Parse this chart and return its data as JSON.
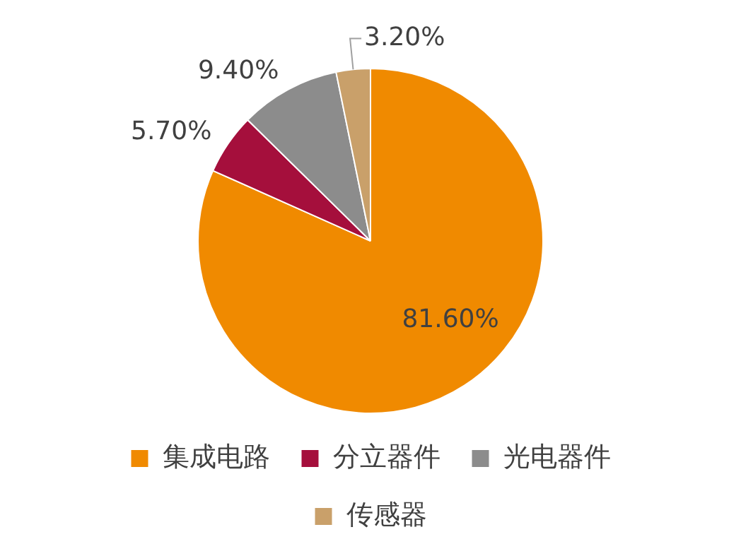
{
  "chart_data": {
    "type": "pie",
    "categories": [
      "集成电路",
      "分立器件",
      "光电器件",
      "传感器"
    ],
    "values": [
      81.6,
      5.7,
      9.4,
      3.2
    ],
    "colors": [
      "#f08a00",
      "#a50f3c",
      "#8c8c8c",
      "#c9a06a"
    ],
    "value_labels": [
      "81.60%",
      "5.70%",
      "9.40%",
      "3.20%"
    ],
    "legend": "bottom"
  }
}
